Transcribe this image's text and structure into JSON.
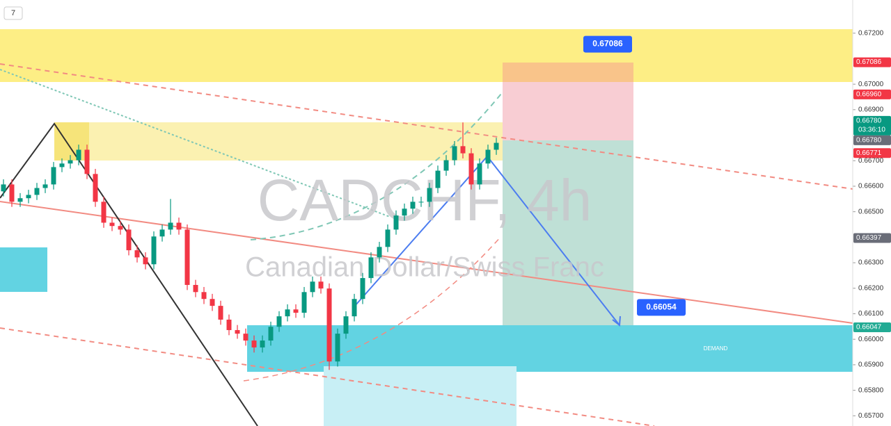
{
  "chart_data": {
    "type": "candlestick",
    "watermark": "CADCHF, 4h",
    "watermark_subtitle": "Canadian Dollar/Swiss Franc",
    "interval_badge": "7",
    "zone_label": "DEMAND",
    "up_color": "#089981",
    "down_color": "#f23645",
    "categories": [
      null,
      null,
      null,
      null,
      null,
      null,
      null,
      null,
      null,
      null,
      null,
      null,
      null,
      null,
      null,
      null,
      null,
      null,
      null,
      null,
      null,
      null,
      null,
      null,
      null,
      null,
      null,
      null,
      null,
      null,
      null,
      null,
      null,
      null,
      null,
      null,
      null,
      null,
      null,
      null,
      null,
      null,
      null,
      null,
      null,
      null,
      null,
      null,
      null,
      null,
      null,
      null,
      null,
      null,
      null,
      null,
      null,
      null,
      null,
      null
    ],
    "open": [
      0.6658,
      0.66607,
      0.66539,
      0.66553,
      0.66566,
      0.66593,
      0.66607,
      0.66675,
      0.66689,
      0.66702,
      0.66743,
      0.66648,
      0.66539,
      0.66457,
      0.66444,
      0.6643,
      0.66349,
      0.66321,
      0.66294,
      0.66403,
      0.6643,
      0.66457,
      0.6643,
      0.66213,
      0.66185,
      0.66158,
      0.66131,
      0.66077,
      0.66036,
      0.66022,
      0.65995,
      0.65968,
      0.65995,
      0.66049,
      0.6609,
      0.66117,
      0.66104,
      0.66185,
      0.66226,
      0.66199,
      0.65913,
      0.66022,
      0.6609,
      0.66158,
      0.6624,
      0.66321,
      0.66362,
      0.6643,
      0.66485,
      0.66512,
      0.66539,
      0.66539,
      0.66593,
      0.66661,
      0.66702,
      0.66757,
      0.66729,
      0.66607,
      0.66689,
      0.66743
    ],
    "high": [
      0.66627,
      0.66627,
      0.66573,
      0.66586,
      0.66613,
      0.66627,
      0.66695,
      0.66709,
      0.66722,
      0.66763,
      0.66763,
      0.66668,
      0.66559,
      0.66477,
      0.66464,
      0.6645,
      0.66369,
      0.66341,
      0.66423,
      0.6645,
      0.6655,
      0.66477,
      0.6645,
      0.66233,
      0.66205,
      0.66178,
      0.66151,
      0.66097,
      0.66056,
      0.66042,
      0.66015,
      0.66015,
      0.66069,
      0.6611,
      0.66137,
      0.66137,
      0.66205,
      0.66246,
      0.66246,
      0.66219,
      0.66042,
      0.6611,
      0.66178,
      0.6626,
      0.66341,
      0.66382,
      0.6645,
      0.66505,
      0.66532,
      0.66559,
      0.66559,
      0.66613,
      0.66681,
      0.66722,
      0.66777,
      0.6685,
      0.66749,
      0.66709,
      0.66763,
      0.6679
    ],
    "low": [
      0.6656,
      0.66519,
      0.66519,
      0.66533,
      0.66546,
      0.66573,
      0.66587,
      0.66655,
      0.66669,
      0.66682,
      0.66628,
      0.66519,
      0.66437,
      0.66424,
      0.6641,
      0.66329,
      0.66301,
      0.66274,
      0.66274,
      0.66383,
      0.6641,
      0.6641,
      0.66193,
      0.66165,
      0.66138,
      0.66111,
      0.66057,
      0.66016,
      0.66002,
      0.65975,
      0.65948,
      0.65948,
      0.65975,
      0.66029,
      0.6607,
      0.66084,
      0.66084,
      0.66165,
      0.66179,
      0.6588,
      0.65893,
      0.66002,
      0.6607,
      0.66138,
      0.6622,
      0.66301,
      0.66342,
      0.6641,
      0.66465,
      0.66492,
      0.66519,
      0.66519,
      0.66573,
      0.66641,
      0.66682,
      0.66709,
      0.66587,
      0.66587,
      0.66669,
      0.66723
    ],
    "close": [
      0.66607,
      0.66539,
      0.66553,
      0.66566,
      0.66593,
      0.66607,
      0.66675,
      0.66689,
      0.66702,
      0.66743,
      0.66648,
      0.66539,
      0.66457,
      0.66444,
      0.6643,
      0.66349,
      0.66321,
      0.66294,
      0.66403,
      0.6643,
      0.66457,
      0.6643,
      0.66213,
      0.66185,
      0.66158,
      0.66131,
      0.66077,
      0.66036,
      0.66022,
      0.65995,
      0.65968,
      0.65995,
      0.66049,
      0.6609,
      0.66117,
      0.66104,
      0.66185,
      0.66226,
      0.66199,
      0.65913,
      0.66022,
      0.6609,
      0.66158,
      0.6624,
      0.66321,
      0.66362,
      0.6643,
      0.66485,
      0.66512,
      0.66539,
      0.66539,
      0.66593,
      0.66661,
      0.66702,
      0.66757,
      0.66729,
      0.66607,
      0.66689,
      0.66743,
      0.6677
    ],
    "ylim": [
      0.6566,
      0.6733
    ],
    "yticks": [
      {
        "value": 0.672,
        "label": "0.67200"
      },
      {
        "value": 0.67,
        "label": "0.67000"
      },
      {
        "value": 0.669,
        "label": "0.66900"
      },
      {
        "value": 0.667,
        "label": "0.66700"
      },
      {
        "value": 0.666,
        "label": "0.66600"
      },
      {
        "value": 0.665,
        "label": "0.66500"
      },
      {
        "value": 0.663,
        "label": "0.66300"
      },
      {
        "value": 0.662,
        "label": "0.66200"
      },
      {
        "value": 0.661,
        "label": "0.66100"
      },
      {
        "value": 0.66,
        "label": "0.66000"
      },
      {
        "value": 0.659,
        "label": "0.65900"
      },
      {
        "value": 0.658,
        "label": "0.65800"
      },
      {
        "value": 0.657,
        "label": "0.65700"
      }
    ],
    "price_labels": [
      {
        "value": 0.67086,
        "label": "0.67086",
        "color": "#f23645"
      },
      {
        "value": 0.6696,
        "label": "0.66960",
        "color": "#f23645"
      },
      {
        "value": 0.6678,
        "label": "0.66780",
        "color": "#089981",
        "countdown": "03:36:10"
      },
      {
        "value": 0.6678,
        "label": "0.66780",
        "color": "#6a6d78"
      },
      {
        "value": 0.66771,
        "label": "0.66771",
        "color": "#f23645"
      },
      {
        "value": 0.66397,
        "label": "0.66397",
        "color": "#6a6d78"
      },
      {
        "value": 0.66047,
        "label": "0.66047",
        "color": "#22ab94"
      }
    ],
    "callouts": [
      {
        "value": 0.67086,
        "label": "0.67086"
      },
      {
        "value": 0.66054,
        "label": "0.66054"
      }
    ]
  }
}
